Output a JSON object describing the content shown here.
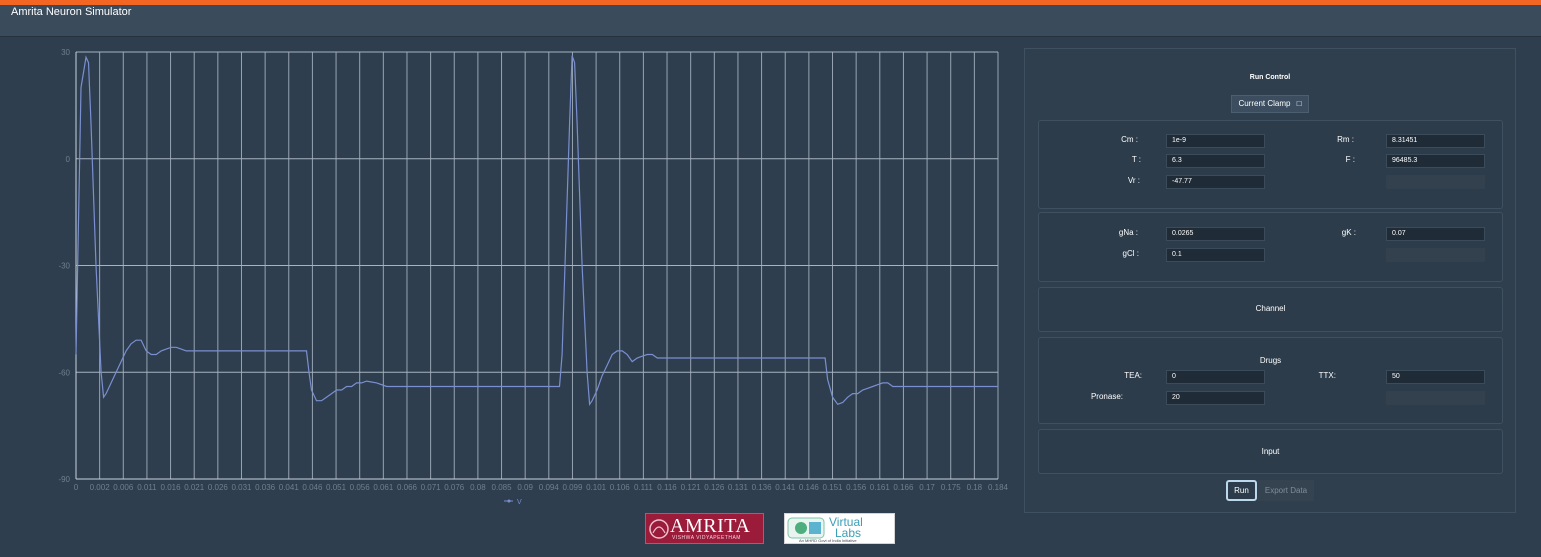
{
  "app": {
    "title": "Amrita Neuron Simulator"
  },
  "chart_data": {
    "type": "line",
    "x_ticks": [
      "0",
      "0.002",
      "0.006",
      "0.011",
      "0.016",
      "0.021",
      "0.026",
      "0.031",
      "0.036",
      "0.041",
      "0.046",
      "0.051",
      "0.056",
      "0.061",
      "0.066",
      "0.071",
      "0.076",
      "0.08",
      "0.085",
      "0.09",
      "0.094",
      "0.099",
      "0.101",
      "0.106",
      "0.111",
      "0.116",
      "0.121",
      "0.126",
      "0.131",
      "0.136",
      "0.141",
      "0.146",
      "0.151",
      "0.156",
      "0.161",
      "0.166",
      "0.17",
      "0.175",
      "0.18",
      "0.184"
    ],
    "y_ticks": [
      30,
      0,
      -30,
      -60,
      -90
    ],
    "ylim": [
      -90,
      30
    ],
    "grid": true,
    "legend": "bottom-center",
    "series": [
      {
        "name": "V",
        "color": "#7a8fd0",
        "points": [
          [
            0,
            -55
          ],
          [
            0.001,
            20
          ],
          [
            0.002,
            28.5
          ],
          [
            0.0025,
            27
          ],
          [
            0.003,
            10
          ],
          [
            0.004,
            -30
          ],
          [
            0.005,
            -60
          ],
          [
            0.0055,
            -67
          ],
          [
            0.006,
            -66
          ],
          [
            0.007,
            -63
          ],
          [
            0.008,
            -60
          ],
          [
            0.009,
            -57
          ],
          [
            0.01,
            -54
          ],
          [
            0.011,
            -52
          ],
          [
            0.012,
            -51
          ],
          [
            0.013,
            -51
          ],
          [
            0.014,
            -54
          ],
          [
            0.015,
            -55
          ],
          [
            0.016,
            -55
          ],
          [
            0.017,
            -54
          ],
          [
            0.018,
            -53.5
          ],
          [
            0.019,
            -53
          ],
          [
            0.02,
            -53
          ],
          [
            0.021,
            -53.5
          ],
          [
            0.022,
            -54
          ],
          [
            0.025,
            -54
          ],
          [
            0.03,
            -54
          ],
          [
            0.04,
            -54
          ],
          [
            0.046,
            -54
          ],
          [
            0.0465,
            -60
          ],
          [
            0.047,
            -65
          ],
          [
            0.048,
            -68
          ],
          [
            0.049,
            -68
          ],
          [
            0.05,
            -67
          ],
          [
            0.051,
            -66
          ],
          [
            0.052,
            -65
          ],
          [
            0.053,
            -65
          ],
          [
            0.054,
            -64
          ],
          [
            0.055,
            -64
          ],
          [
            0.056,
            -63
          ],
          [
            0.057,
            -63
          ],
          [
            0.058,
            -62.5
          ],
          [
            0.06,
            -63
          ],
          [
            0.062,
            -64
          ],
          [
            0.07,
            -64
          ],
          [
            0.08,
            -64
          ],
          [
            0.09,
            -64
          ],
          [
            0.0965,
            -64
          ],
          [
            0.097,
            -55
          ],
          [
            0.0985,
            10
          ],
          [
            0.099,
            29
          ],
          [
            0.0995,
            27
          ],
          [
            0.1,
            10
          ],
          [
            0.101,
            -30
          ],
          [
            0.102,
            -60
          ],
          [
            0.1025,
            -69
          ],
          [
            0.103,
            -68
          ],
          [
            0.104,
            -65
          ],
          [
            0.105,
            -61
          ],
          [
            0.106,
            -58
          ],
          [
            0.107,
            -55
          ],
          [
            0.108,
            -54
          ],
          [
            0.109,
            -54
          ],
          [
            0.11,
            -55
          ],
          [
            0.111,
            -57
          ],
          [
            0.112,
            -56
          ],
          [
            0.113,
            -55.5
          ],
          [
            0.114,
            -55
          ],
          [
            0.115,
            -55
          ],
          [
            0.116,
            -56
          ],
          [
            0.12,
            -56
          ],
          [
            0.13,
            -56
          ],
          [
            0.14,
            -56
          ],
          [
            0.1495,
            -56
          ],
          [
            0.15,
            -62
          ],
          [
            0.151,
            -67
          ],
          [
            0.152,
            -69
          ],
          [
            0.153,
            -68.5
          ],
          [
            0.154,
            -67
          ],
          [
            0.155,
            -66
          ],
          [
            0.156,
            -66
          ],
          [
            0.157,
            -65
          ],
          [
            0.158,
            -64.5
          ],
          [
            0.159,
            -64
          ],
          [
            0.16,
            -63.5
          ],
          [
            0.161,
            -63
          ],
          [
            0.162,
            -63
          ],
          [
            0.163,
            -64
          ],
          [
            0.165,
            -64
          ],
          [
            0.17,
            -64
          ],
          [
            0.18,
            -64
          ],
          [
            0.184,
            -64
          ]
        ]
      }
    ]
  },
  "run_control": {
    "title": "Run Control",
    "clamp_label": "Current Clamp",
    "clamp_icon": "menu-icon"
  },
  "params1": {
    "cm_label": "Cm :",
    "cm_value": "1e-9",
    "rm_label": "Rm :",
    "rm_value": "8.31451",
    "t_label": "T :",
    "t_value": "6.3",
    "f_label": "F :",
    "f_value": "96485.3",
    "vr_label": "Vr :",
    "vr_value": "-47.77"
  },
  "params2": {
    "gna_label": "gNa :",
    "gna_value": "0.0265",
    "gk_label": "gK :",
    "gk_value": "0.07",
    "gcl_label": "gCl :",
    "gcl_value": "0.1"
  },
  "channel": {
    "title": "Channel"
  },
  "drugs": {
    "title": "Drugs",
    "tea_label": "TEA:",
    "tea_value": "0",
    "ttx_label": "TTX:",
    "ttx_value": "50",
    "pronase_label": "Pronase:",
    "pronase_value": "20"
  },
  "input_section": {
    "title": "Input"
  },
  "actions": {
    "run_label": "Run",
    "export_label": "Export Data"
  },
  "logos": {
    "amrita_name": "AMRITA",
    "amrita_sub": "VISHWA VIDYAPEETHAM",
    "vlabs_name1": "Virtual",
    "vlabs_name2": "Labs",
    "vlabs_sub": "An MHRD Govt of India Initiative"
  }
}
